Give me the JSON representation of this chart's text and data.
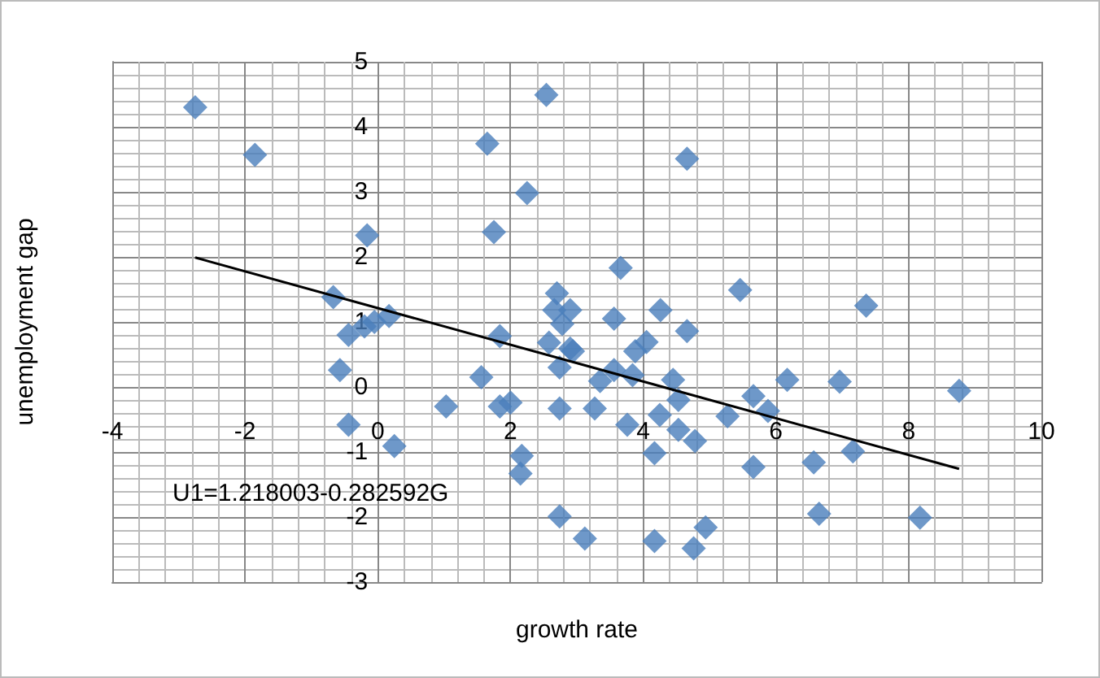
{
  "chart_data": {
    "type": "scatter",
    "xlabel": "growth rate",
    "ylabel": "unemployment gap",
    "annotations": [
      "U1=1.218003-0.282592G"
    ],
    "xlim": [
      -4,
      10
    ],
    "xticks": [
      -4,
      -2,
      0,
      2,
      4,
      6,
      8,
      10
    ],
    "ylim": [
      -3,
      5
    ],
    "yticks": [
      -3,
      -2,
      -1,
      0,
      1,
      2,
      3,
      4,
      5
    ],
    "grid": true,
    "marker": "diamond",
    "series": [
      {
        "color": "#4a7ebb",
        "x": [
          -2.75,
          -1.85,
          1.65,
          2.54,
          2.25,
          -0.16,
          1.75,
          -0.67,
          2.7,
          2.66,
          4.66,
          3.66,
          5.46,
          7.36,
          4.26,
          3.56,
          0.17,
          -0.05,
          -0.2,
          -0.44,
          -0.57,
          -0.44,
          0.25,
          1.03,
          1.56,
          1.84,
          1.84,
          2.0,
          2.17,
          2.15,
          2.74,
          3.12,
          2.74,
          2.58,
          2.74,
          2.9,
          2.78,
          2.9,
          4.66,
          4.05,
          3.88,
          2.94,
          3.56,
          3.84,
          3.35,
          4.45,
          4.53,
          4.25,
          3.27,
          3.76,
          4.53,
          4.78,
          4.17,
          5.27,
          5.66,
          5.88,
          6.17,
          6.96,
          8.76,
          5.66,
          6.57,
          7.16,
          6.65,
          8.17,
          4.17,
          4.94,
          4.76
        ],
        "values": [
          4.3,
          3.57,
          3.74,
          4.49,
          2.98,
          2.33,
          2.38,
          1.38,
          1.44,
          1.18,
          3.51,
          1.83,
          1.49,
          1.25,
          1.18,
          1.05,
          1.09,
          1.0,
          0.93,
          0.8,
          0.26,
          -0.58,
          -0.91,
          -0.3,
          0.15,
          0.78,
          -0.3,
          -0.24,
          -1.06,
          -1.33,
          -1.99,
          -2.33,
          -0.33,
          0.68,
          0.3,
          0.59,
          0.97,
          1.18,
          0.86,
          0.69,
          0.55,
          0.55,
          0.26,
          0.18,
          0.09,
          0.11,
          -0.2,
          -0.43,
          -0.33,
          -0.58,
          -0.66,
          -0.83,
          -1.02,
          -0.45,
          -0.14,
          -0.37,
          0.11,
          0.08,
          -0.06,
          -1.23,
          -1.16,
          -0.99,
          -1.95,
          -2.01,
          -2.37,
          -2.16,
          -2.48
        ]
      },
      {
        "type": "line",
        "color": "#000000",
        "marker": "none",
        "x": [
          -2.75,
          8.76
        ],
        "values": [
          1.99,
          -1.26
        ]
      }
    ]
  }
}
